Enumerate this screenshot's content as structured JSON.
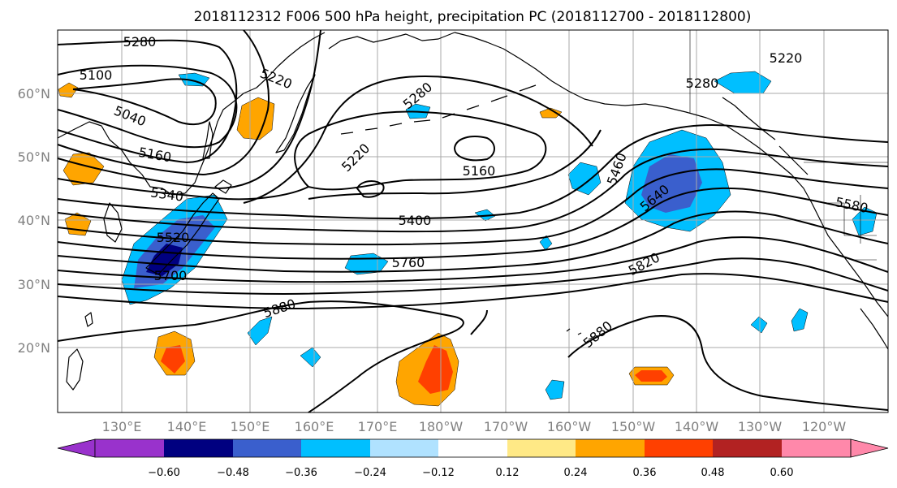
{
  "title": "2018112312 F006 500 hPa height, precipitation PC (2018112700 - 2018112800)",
  "lat_labels": [
    "20°N",
    "30°N",
    "40°N",
    "50°N",
    "60°N"
  ],
  "lon_labels": [
    "130°E",
    "140°E",
    "150°E",
    "160°E",
    "170°E",
    "180°W",
    "170°W",
    "160°W",
    "150°W",
    "140°W",
    "130°W",
    "120°W"
  ],
  "contour_labels": [
    "5280",
    "5100",
    "5220",
    "5040",
    "5160",
    "5340",
    "5520",
    "5700",
    "5280",
    "5220",
    "5160",
    "5400",
    "5760",
    "5880",
    "5460",
    "5640",
    "5820",
    "5880",
    "5220",
    "5280",
    "5580"
  ],
  "colorbar": {
    "colors": [
      "#9932cc",
      "#000080",
      "#3a5fcd",
      "#00bfff",
      "#b0e2ff",
      "#ffffff",
      "#ffe986",
      "#ffa500",
      "#ff4000",
      "#b22222",
      "#ff88aa"
    ],
    "tick_labels": [
      "−0.60",
      "−0.48",
      "−0.36",
      "−0.24",
      "−0.12",
      "0.12",
      "0.24",
      "0.36",
      "0.48",
      "0.60"
    ]
  },
  "colors": {
    "grid": "#a9a9a9",
    "axis_label": "#808080",
    "contour": "#000000"
  }
}
